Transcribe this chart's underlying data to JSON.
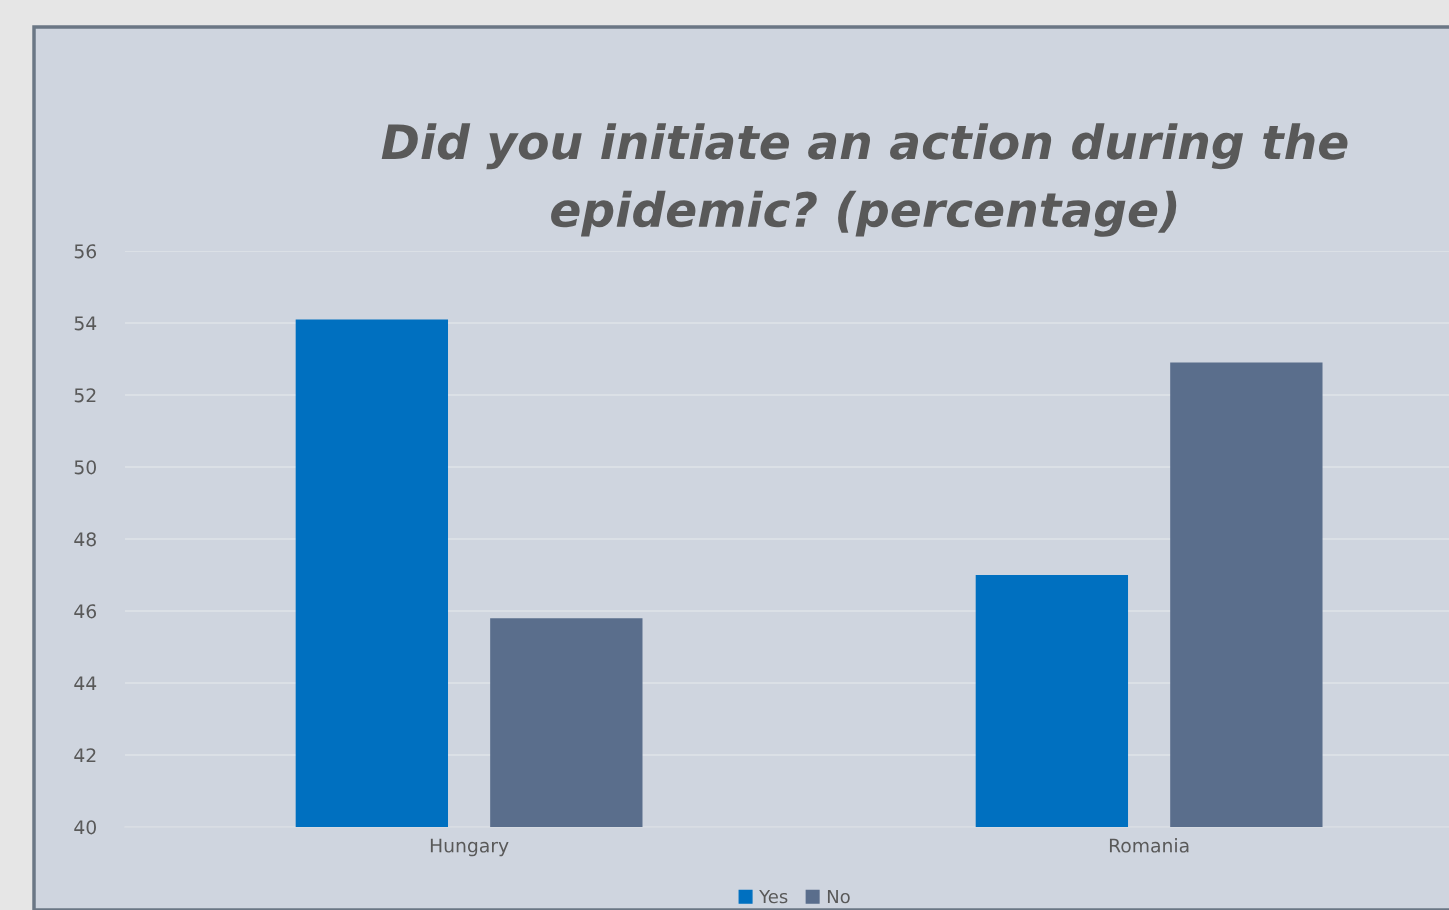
{
  "chart_data": {
    "type": "bar",
    "title": "Did you initiate an action during the epidemic? (percentage)",
    "categories": [
      "Hungary",
      "Romania"
    ],
    "series": [
      {
        "name": "Yes",
        "color": "#0070c0",
        "values": [
          54.1,
          47.0
        ]
      },
      {
        "name": "No",
        "color": "#5a6e8c",
        "values": [
          45.8,
          52.9
        ]
      }
    ],
    "ylim": [
      40,
      56
    ],
    "yticks": [
      40,
      42,
      44,
      46,
      48,
      50,
      52,
      54,
      56
    ],
    "grid": "y",
    "legend": "bottom"
  }
}
